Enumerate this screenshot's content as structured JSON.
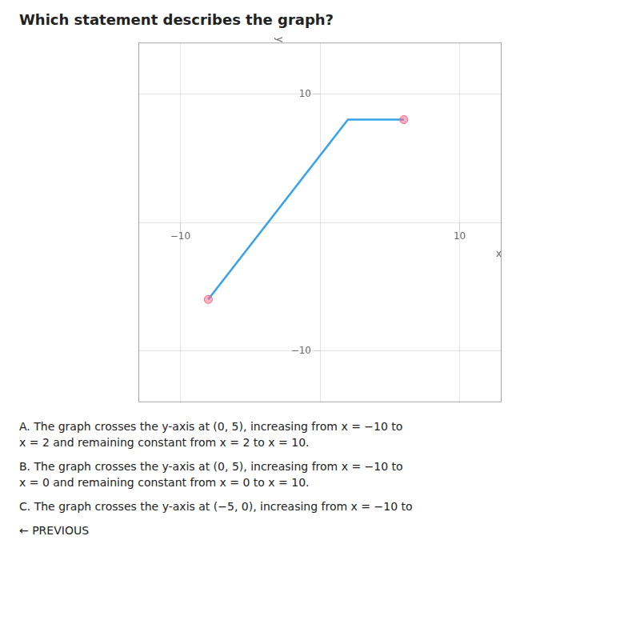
{
  "chart_data": {
    "type": "line",
    "title": "Which statement describes the graph?",
    "xlabel": "x",
    "ylabel": "y",
    "series": [
      {
        "type": "line",
        "x": [
          -8,
          2,
          6
        ],
        "values": [
          -6,
          8,
          8
        ]
      },
      {
        "type": "scatter",
        "x": [
          -8,
          6
        ],
        "values": [
          -6,
          8
        ]
      }
    ],
    "xlim": [
      -13,
      13
    ],
    "ylim": [
      -14,
      14
    ],
    "xticks": [
      {
        "value": -10,
        "label": "−10"
      },
      {
        "value": 10,
        "label": "10"
      }
    ],
    "yticks": [
      {
        "value": -10,
        "label": "−10"
      },
      {
        "value": 10,
        "label": "10"
      }
    ],
    "grid": true,
    "annotations": [
      "A. The graph crosses the y-axis at (0, 5), increasing from x = −10 to",
      "x = 2 and remaining constant from x = 2 to x = 10.",
      "B. The graph crosses the y-axis at (0, 5), increasing from x = −10 to",
      "x = 0 and remaining constant from x = 0 to x = 10.",
      "C. The graph crosses the y-axis at (−5, 0), increasing from x = −10 to",
      "← PREVIOUS"
    ]
  }
}
